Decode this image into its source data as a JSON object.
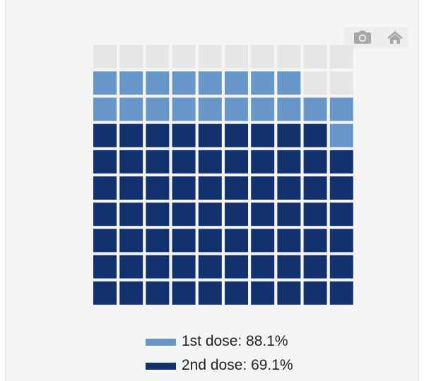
{
  "toolbar": {
    "camera_icon": "camera-icon",
    "home_icon": "home-icon"
  },
  "colors": {
    "first_dose": "#6897c9",
    "second_dose": "#12316f",
    "unvaccinated": "#e6e6e6",
    "background": "#f5f5f5"
  },
  "chart_data": {
    "type": "waffle",
    "grid": {
      "rows": 10,
      "cols": 10,
      "fill_order": "bottom-to-top"
    },
    "series": [
      {
        "name": "1st dose: 88.1%",
        "value": 88.1,
        "cells": 88
      },
      {
        "name": "2nd dose: 69.1%",
        "value": 69.1,
        "cells": 69
      }
    ]
  },
  "legend": [
    {
      "label": "1st dose: 88.1%",
      "color": "#6897c9"
    },
    {
      "label": "2nd dose: 69.1%",
      "color": "#12316f"
    }
  ]
}
